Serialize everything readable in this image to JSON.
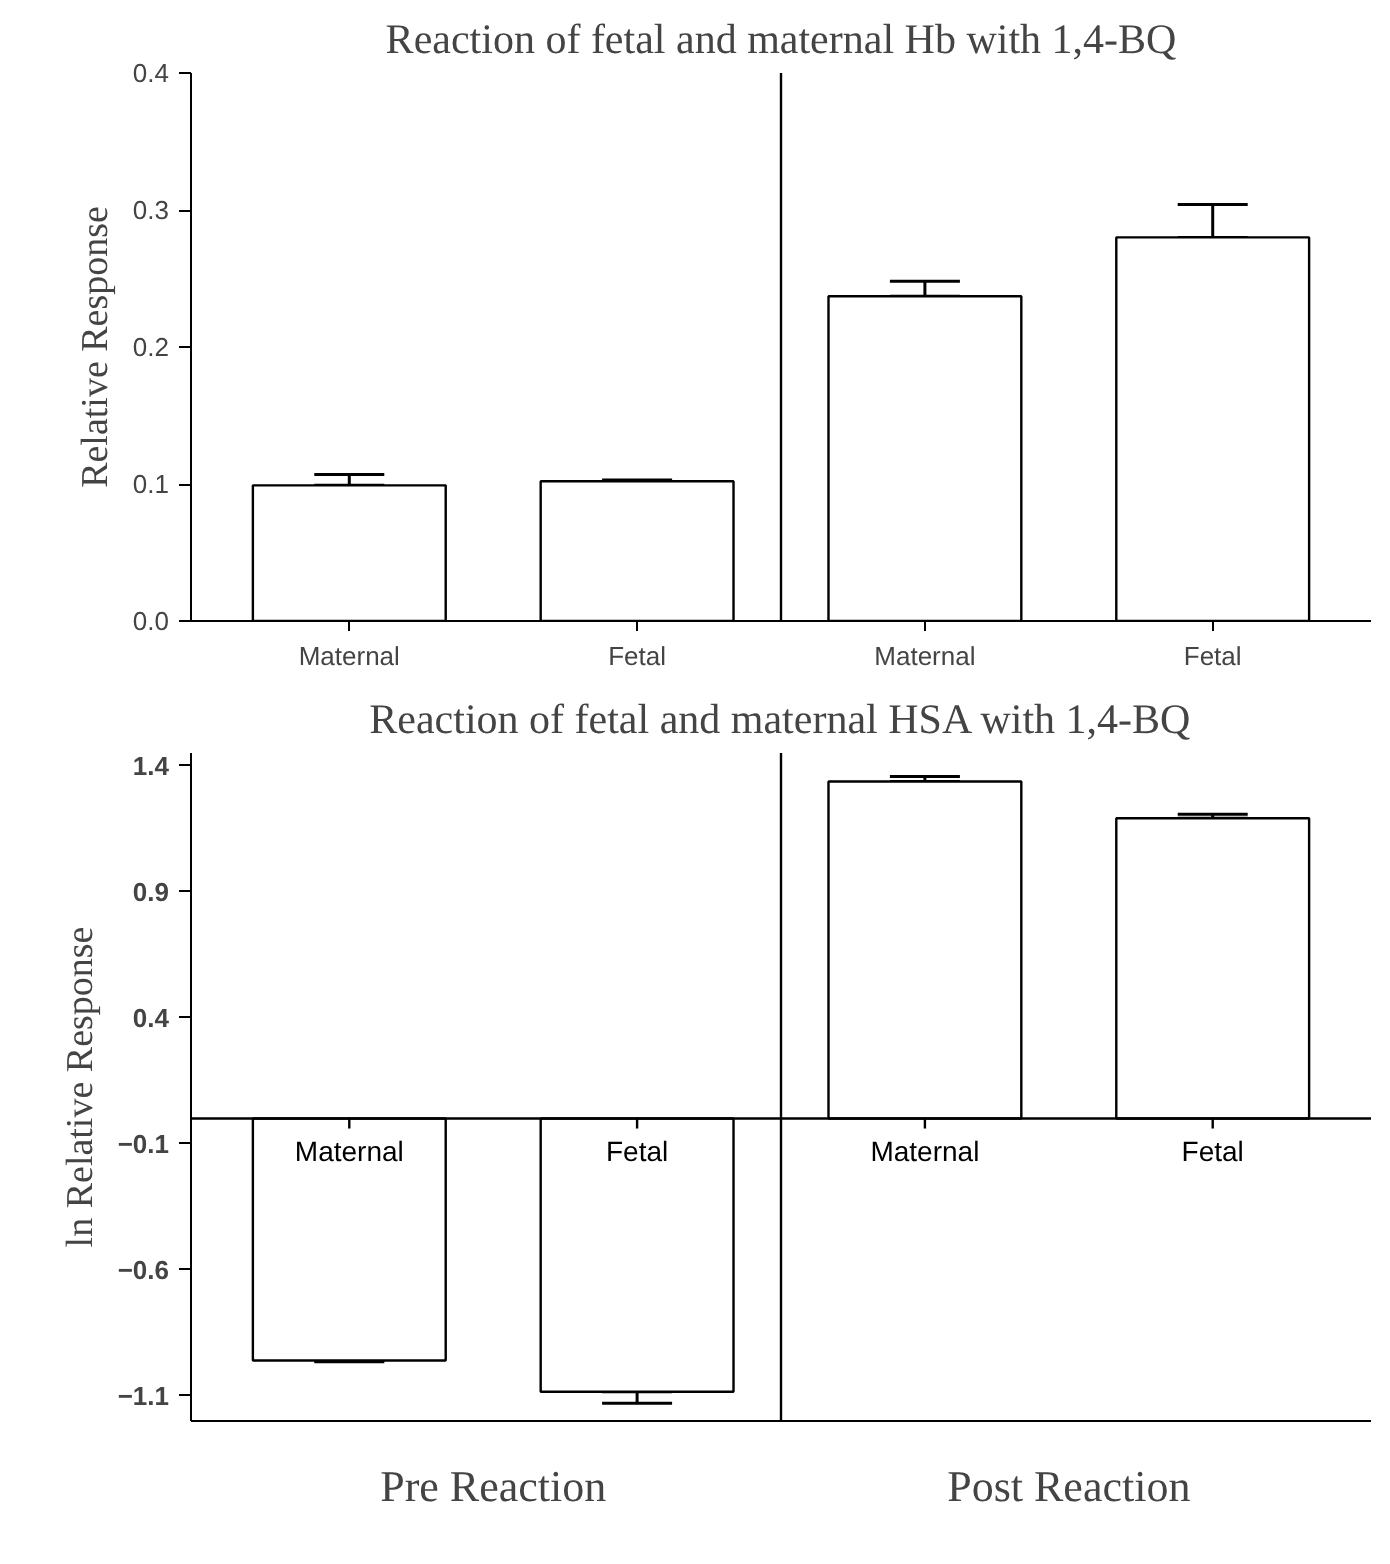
{
  "chart_data": [
    {
      "type": "bar",
      "title": "Reaction of fetal and maternal Hb with 1,4-BQ",
      "ylabel": "Relative Response",
      "categories": [
        "Maternal",
        "Fetal",
        "Maternal",
        "Fetal"
      ],
      "series": [
        {
          "color": "#ffffff",
          "values": [
            0.099,
            0.102,
            0.237,
            0.28
          ],
          "errors": [
            [
              0.099,
              0.107
            ],
            [
              0.102,
              0.103
            ],
            [
              0.237,
              0.248
            ],
            [
              0.28,
              0.304
            ]
          ]
        }
      ],
      "ylim": [
        0,
        0.4
      ],
      "yticks": [
        {
          "value": 0,
          "label": "0.0"
        },
        0.1,
        0.2,
        0.3,
        0.4
      ]
    },
    {
      "type": "bar",
      "title": "Reaction of fetal and maternal HSA with 1,4-BQ",
      "ylabel": "ln Relative Response",
      "categories": [
        "Maternal",
        "Fetal",
        "Maternal",
        "Fetal"
      ],
      "series": [
        {
          "color": "#ffffff",
          "values": [
            -0.96,
            -1.084,
            1.337,
            1.191
          ],
          "errors": [
            [
              -0.965,
              -0.96
            ],
            [
              -1.13,
              -1.084
            ],
            [
              1.337,
              1.357
            ],
            [
              1.191,
              1.207
            ]
          ]
        }
      ],
      "ylim": [
        -1.2,
        1.45
      ],
      "yticks": [
        1.4,
        0.9,
        0.4,
        -0.1,
        -0.6,
        -1.1
      ],
      "annotations": [
        "Pre Reaction",
        "Post Reaction"
      ]
    }
  ]
}
